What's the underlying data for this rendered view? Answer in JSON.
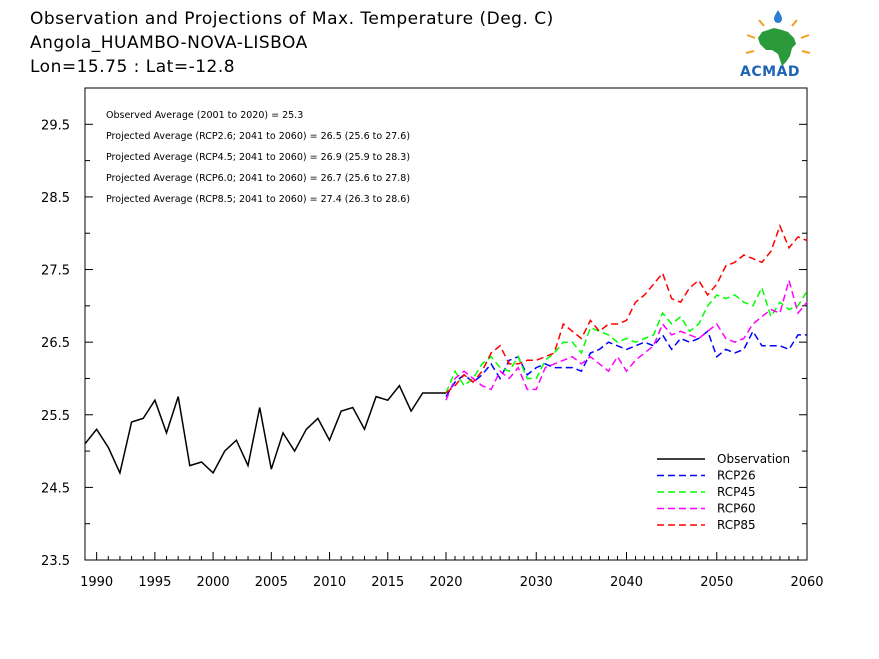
{
  "header": {
    "line1": "Observation and Projections of Max. Temperature (Deg. C)",
    "line2": "Angola_HUAMBO-NOVA-LISBOA",
    "line3": "Lon=15.75 : Lat=-12.8"
  },
  "logo": {
    "text": "ACMAD"
  },
  "chart_data": {
    "type": "line",
    "title": "Observation and Projections of Max. Temperature (Deg. C)",
    "xlim": [
      1989,
      2060
    ],
    "ylim": [
      23.5,
      30.0
    ],
    "x_ticks": [
      1990,
      1995,
      2000,
      2005,
      2010,
      2015,
      2020,
      2030,
      2040,
      2050,
      2060
    ],
    "y_ticks": [
      23.5,
      24.5,
      25.5,
      26.5,
      27.5,
      28.5,
      29.5
    ],
    "y_tick_labels": [
      "23.5",
      "24.5",
      "25.5",
      "26.5",
      "27.5",
      "28.5",
      "29.5"
    ],
    "annotations": [
      "Observed Average (2001 to 2020) = 25.3",
      "Projected Average (RCP2.6; 2041 to 2060) = 26.5 (25.6 to 27.6)",
      "Projected Average (RCP4.5; 2041 to 2060) = 26.9 (25.9 to 28.3)",
      "Projected Average (RCP6.0; 2041 to 2060) = 26.7 (25.6 to 27.8)",
      "Projected Average (RCP8.5; 2041 to 2060) = 27.4 (26.3 to 28.6)"
    ],
    "legend_position": "bottom-right",
    "series": [
      {
        "name": "Observation",
        "color": "#000000",
        "dashed": false,
        "x": [
          1989,
          1990,
          1991,
          1992,
          1993,
          1994,
          1995,
          1996,
          1997,
          1998,
          1999,
          2000,
          2001,
          2002,
          2003,
          2004,
          2005,
          2006,
          2007,
          2008,
          2009,
          2010,
          2011,
          2012,
          2013,
          2014,
          2015,
          2016,
          2017,
          2018,
          2019,
          2020
        ],
        "y": [
          25.1,
          25.3,
          25.05,
          24.7,
          25.4,
          25.45,
          25.7,
          25.25,
          25.75,
          24.8,
          24.85,
          24.7,
          25.0,
          25.15,
          24.8,
          25.6,
          24.75,
          25.25,
          25.0,
          25.3,
          25.45,
          25.15,
          25.55,
          25.6,
          25.3,
          25.75,
          25.7,
          25.9,
          25.55,
          25.8,
          25.8,
          25.8
        ]
      },
      {
        "name": "RCP26",
        "color": "#0000ff",
        "dashed": true,
        "x": [
          2020,
          2021,
          2022,
          2023,
          2024,
          2025,
          2026,
          2027,
          2028,
          2029,
          2030,
          2031,
          2032,
          2033,
          2034,
          2035,
          2036,
          2037,
          2038,
          2039,
          2040,
          2041,
          2042,
          2043,
          2044,
          2045,
          2046,
          2047,
          2048,
          2049,
          2050,
          2051,
          2052,
          2053,
          2054,
          2055,
          2056,
          2057,
          2058,
          2059,
          2060
        ],
        "y": [
          25.75,
          25.95,
          26.05,
          25.95,
          26.05,
          26.2,
          26.0,
          26.25,
          26.3,
          26.05,
          26.15,
          26.2,
          26.15,
          26.15,
          26.15,
          26.1,
          26.35,
          26.4,
          26.5,
          26.45,
          26.4,
          26.45,
          26.5,
          26.45,
          26.6,
          26.4,
          26.55,
          26.5,
          26.55,
          26.65,
          26.3,
          26.4,
          26.35,
          26.4,
          26.65,
          26.45,
          26.45,
          26.45,
          26.4,
          26.6,
          26.6
        ]
      },
      {
        "name": "RCP45",
        "color": "#00ff00",
        "dashed": true,
        "x": [
          2020,
          2021,
          2022,
          2023,
          2024,
          2025,
          2026,
          2027,
          2028,
          2029,
          2030,
          2031,
          2032,
          2033,
          2034,
          2035,
          2036,
          2037,
          2038,
          2039,
          2040,
          2041,
          2042,
          2043,
          2044,
          2045,
          2046,
          2047,
          2048,
          2049,
          2050,
          2051,
          2052,
          2053,
          2054,
          2055,
          2056,
          2057,
          2058,
          2059,
          2060
        ],
        "y": [
          25.8,
          26.1,
          25.9,
          26.0,
          26.2,
          26.3,
          26.15,
          26.1,
          26.3,
          26.0,
          26.0,
          26.25,
          26.35,
          26.5,
          26.5,
          26.35,
          26.7,
          26.65,
          26.6,
          26.5,
          26.55,
          26.5,
          26.55,
          26.6,
          26.9,
          26.75,
          26.85,
          26.65,
          26.75,
          27.0,
          27.15,
          27.1,
          27.15,
          27.05,
          27.0,
          27.25,
          26.85,
          27.05,
          26.95,
          27.0,
          27.2
        ]
      },
      {
        "name": "RCP60",
        "color": "#ff00ff",
        "dashed": true,
        "x": [
          2020,
          2021,
          2022,
          2023,
          2024,
          2025,
          2026,
          2027,
          2028,
          2029,
          2030,
          2031,
          2032,
          2033,
          2034,
          2035,
          2036,
          2037,
          2038,
          2039,
          2040,
          2041,
          2042,
          2043,
          2044,
          2045,
          2046,
          2047,
          2048,
          2049,
          2050,
          2051,
          2052,
          2053,
          2054,
          2055,
          2056,
          2057,
          2058,
          2059,
          2060
        ],
        "y": [
          25.7,
          26.0,
          26.1,
          26.0,
          25.9,
          25.85,
          26.1,
          26.0,
          26.15,
          25.85,
          25.85,
          26.15,
          26.2,
          26.25,
          26.3,
          26.2,
          26.3,
          26.2,
          26.1,
          26.3,
          26.1,
          26.25,
          26.35,
          26.45,
          26.75,
          26.6,
          26.65,
          26.6,
          26.55,
          26.65,
          26.75,
          26.55,
          26.5,
          26.55,
          26.75,
          26.85,
          26.95,
          26.9,
          27.35,
          26.9,
          27.05
        ]
      },
      {
        "name": "RCP85",
        "color": "#ff0000",
        "dashed": true,
        "x": [
          2020,
          2021,
          2022,
          2023,
          2024,
          2025,
          2026,
          2027,
          2028,
          2029,
          2030,
          2031,
          2032,
          2033,
          2034,
          2035,
          2036,
          2037,
          2038,
          2039,
          2040,
          2041,
          2042,
          2043,
          2044,
          2045,
          2046,
          2047,
          2048,
          2049,
          2050,
          2051,
          2052,
          2053,
          2054,
          2055,
          2056,
          2057,
          2058,
          2059,
          2060
        ],
        "y": [
          25.8,
          25.9,
          26.05,
          25.95,
          26.1,
          26.35,
          26.45,
          26.2,
          26.2,
          26.25,
          26.25,
          26.3,
          26.35,
          26.75,
          26.65,
          26.55,
          26.8,
          26.65,
          26.75,
          26.75,
          26.8,
          27.05,
          27.15,
          27.3,
          27.45,
          27.1,
          27.05,
          27.25,
          27.35,
          27.15,
          27.3,
          27.55,
          27.6,
          27.7,
          27.65,
          27.6,
          27.75,
          28.1,
          27.8,
          27.95,
          27.9
        ]
      }
    ]
  }
}
